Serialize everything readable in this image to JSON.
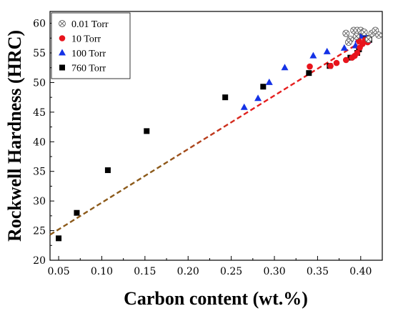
{
  "chart_data": {
    "type": "scatter",
    "xlabel": "Carbon content (wt.%)",
    "ylabel": "Rockwell Hardness (HRC)",
    "xlim": [
      0.04,
      0.425
    ],
    "ylim": [
      20,
      62
    ],
    "xticks": [
      0.05,
      0.1,
      0.15,
      0.2,
      0.25,
      0.3,
      0.35,
      0.4
    ],
    "xtick_labels": [
      "0.05",
      "0.10",
      "0.15",
      "0.20",
      "0.25",
      "0.30",
      "0.35",
      "0.40"
    ],
    "yticks": [
      20,
      25,
      30,
      35,
      40,
      45,
      50,
      55,
      60
    ],
    "ytick_labels": [
      "20",
      "25",
      "30",
      "35",
      "40",
      "45",
      "50",
      "55",
      "60"
    ],
    "grid": false,
    "legend_position": "top-left",
    "series": [
      {
        "name": "0.01 Torr",
        "marker": "circle-x",
        "color": "#666666",
        "points": [
          [
            0.383,
            58.3
          ],
          [
            0.388,
            57.3
          ],
          [
            0.392,
            58.8
          ],
          [
            0.396,
            58.8
          ],
          [
            0.4,
            58.8
          ],
          [
            0.404,
            58.5
          ],
          [
            0.409,
            57.3
          ],
          [
            0.413,
            58.3
          ],
          [
            0.417,
            58.8
          ],
          [
            0.421,
            58.0
          ],
          [
            0.386,
            56.8
          ],
          [
            0.395,
            57.8
          ]
        ]
      },
      {
        "name": "10 Torr",
        "marker": "circle",
        "color": "#e8141c",
        "points": [
          [
            0.341,
            52.7
          ],
          [
            0.365,
            52.8
          ],
          [
            0.372,
            53.3
          ],
          [
            0.383,
            53.8
          ],
          [
            0.39,
            54.2
          ],
          [
            0.393,
            54.5
          ],
          [
            0.396,
            55.0
          ],
          [
            0.399,
            55.9
          ],
          [
            0.402,
            56.5
          ],
          [
            0.405,
            57.2
          ],
          [
            0.408,
            56.8
          ],
          [
            0.398,
            57.0
          ]
        ]
      },
      {
        "name": "100 Torr",
        "marker": "triangle",
        "color": "#1432e6",
        "points": [
          [
            0.265,
            45.8
          ],
          [
            0.281,
            47.3
          ],
          [
            0.294,
            50.0
          ],
          [
            0.312,
            52.5
          ],
          [
            0.345,
            54.5
          ],
          [
            0.361,
            55.2
          ],
          [
            0.381,
            55.8
          ],
          [
            0.394,
            56.2
          ],
          [
            0.397,
            57.2
          ],
          [
            0.4,
            57.8
          ],
          [
            0.404,
            58.2
          ],
          [
            0.408,
            57.0
          ]
        ]
      },
      {
        "name": "760 Torr",
        "marker": "square",
        "color": "#000000",
        "points": [
          [
            0.05,
            23.7
          ],
          [
            0.071,
            28.0
          ],
          [
            0.107,
            35.2
          ],
          [
            0.152,
            41.8
          ],
          [
            0.243,
            47.5
          ],
          [
            0.287,
            49.3
          ],
          [
            0.34,
            51.6
          ],
          [
            0.364,
            52.8
          ],
          [
            0.388,
            54.2
          ],
          [
            0.396,
            55.0
          ],
          [
            0.398,
            55.6
          ],
          [
            0.402,
            58.3
          ],
          [
            0.406,
            57.5
          ],
          [
            0.41,
            57.2
          ]
        ]
      }
    ],
    "fit_line": {
      "x": [
        0.04,
        0.415
      ],
      "y": [
        24.3,
        58.2
      ],
      "colors": [
        "#8c5a1a",
        "#e61e1e"
      ],
      "style": "dashed"
    }
  }
}
